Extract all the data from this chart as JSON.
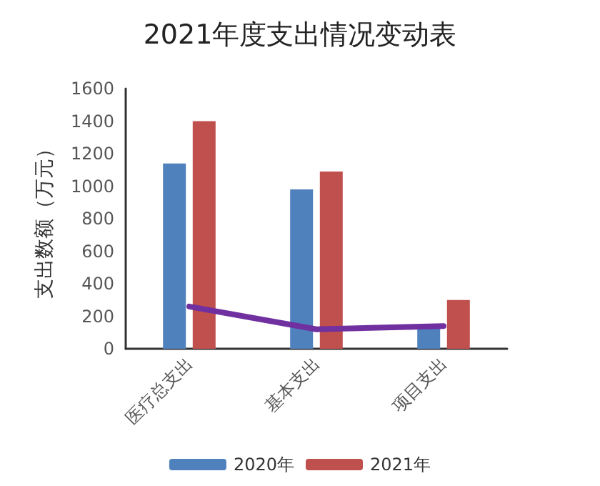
{
  "chart_data": {
    "type": "bar",
    "title": "2021年度支出情况变动表",
    "ylabel": "支出数额（万元）",
    "categories": [
      "医疗总支出",
      "基本支出",
      "项目支出"
    ],
    "series": [
      {
        "name": "2020年",
        "color": "#4f81bd",
        "values": [
          1140,
          980,
          150
        ]
      },
      {
        "name": "2021年",
        "color": "#c0504d",
        "values": [
          1400,
          1090,
          300
        ]
      },
      {
        "type": "line",
        "color": "#7030a0",
        "values": [
          260,
          120,
          140
        ],
        "marker": "none"
      }
    ],
    "ylim": [
      0,
      1600
    ],
    "yticks": [
      0,
      200,
      400,
      600,
      800,
      1000,
      1200,
      1400,
      1600
    ],
    "grid": false,
    "legend": "bottom"
  }
}
